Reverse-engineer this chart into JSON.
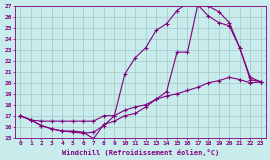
{
  "xlabel": "Windchill (Refroidissement éolien,°C)",
  "xlim": [
    -0.5,
    23.5
  ],
  "ylim": [
    15,
    27
  ],
  "yticks": [
    15,
    16,
    17,
    18,
    19,
    20,
    21,
    22,
    23,
    24,
    25,
    26,
    27
  ],
  "xticks": [
    0,
    1,
    2,
    3,
    4,
    5,
    6,
    7,
    8,
    9,
    10,
    11,
    12,
    13,
    14,
    15,
    16,
    17,
    18,
    19,
    20,
    21,
    22,
    23
  ],
  "background_color": "#c8ecec",
  "grid_color": "#aacccc",
  "line_color": "#800080",
  "line1_x": [
    0,
    1,
    2,
    3,
    4,
    5,
    6,
    7,
    8,
    9,
    10,
    11,
    12,
    13,
    14,
    15,
    16,
    17,
    18,
    19,
    20,
    21,
    22,
    23
  ],
  "line1_y": [
    17.0,
    16.6,
    16.1,
    15.8,
    15.6,
    15.6,
    15.5,
    14.9,
    16.2,
    16.5,
    17.0,
    17.2,
    17.8,
    18.5,
    19.2,
    22.8,
    22.8,
    27.2,
    27.0,
    26.5,
    25.5,
    23.2,
    20.3,
    20.1
  ],
  "line2_x": [
    0,
    1,
    2,
    3,
    4,
    5,
    6,
    7,
    8,
    9,
    10,
    11,
    12,
    13,
    14,
    15,
    16,
    17,
    18,
    19,
    20,
    21,
    22,
    23
  ],
  "line2_y": [
    17.0,
    16.6,
    16.1,
    15.8,
    15.6,
    15.5,
    15.4,
    15.5,
    16.1,
    17.0,
    20.8,
    22.3,
    23.2,
    24.8,
    25.4,
    26.6,
    27.3,
    27.1,
    26.1,
    25.5,
    25.2,
    23.2,
    20.5,
    20.1
  ],
  "line3_x": [
    0,
    1,
    2,
    3,
    4,
    5,
    6,
    7,
    8,
    9,
    10,
    11,
    12,
    13,
    14,
    15,
    16,
    17,
    18,
    19,
    20,
    21,
    22,
    23
  ],
  "line3_y": [
    17.0,
    16.6,
    16.5,
    16.5,
    16.5,
    16.5,
    16.5,
    16.5,
    17.0,
    17.0,
    17.5,
    17.8,
    18.0,
    18.5,
    18.8,
    19.0,
    19.3,
    19.6,
    20.0,
    20.2,
    20.5,
    20.3,
    20.0,
    20.1
  ]
}
